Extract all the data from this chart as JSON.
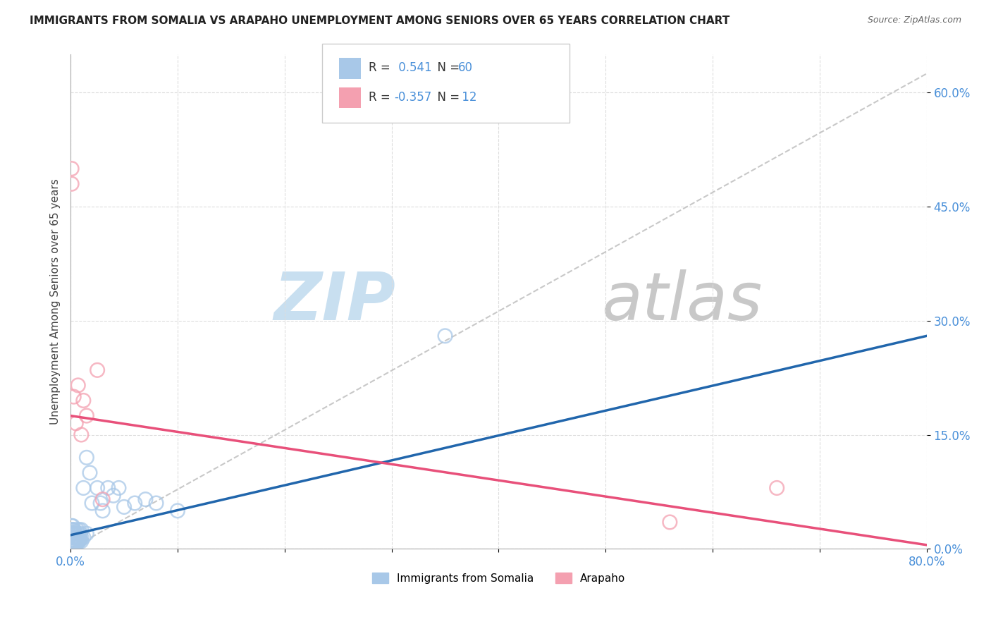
{
  "title": "IMMIGRANTS FROM SOMALIA VS ARAPAHO UNEMPLOYMENT AMONG SENIORS OVER 65 YEARS CORRELATION CHART",
  "source": "Source: ZipAtlas.com",
  "ylabel": "Unemployment Among Seniors over 65 years",
  "R1": 0.541,
  "N1": 60,
  "R2": -0.357,
  "N2": 12,
  "blue_color": "#a8c8e8",
  "pink_color": "#f4a0b0",
  "blue_line_color": "#2166ac",
  "pink_line_color": "#e8507a",
  "watermark_zip_color": "#c8dff0",
  "watermark_atlas_color": "#c8c8c8",
  "background_color": "#ffffff",
  "xlim": [
    0,
    0.8
  ],
  "ylim": [
    0,
    0.65
  ],
  "ytick_values": [
    0,
    0.15,
    0.3,
    0.45,
    0.6
  ],
  "ytick_labels": [
    "0.0%",
    "15.0%",
    "30.0%",
    "45.0%",
    "60.0%"
  ],
  "legend1_label": "Immigrants from Somalia",
  "legend2_label": "Arapaho",
  "somalia_points_x": [
    0.001,
    0.001,
    0.001,
    0.001,
    0.001,
    0.001,
    0.001,
    0.001,
    0.001,
    0.001,
    0.002,
    0.002,
    0.002,
    0.002,
    0.002,
    0.002,
    0.002,
    0.003,
    0.003,
    0.003,
    0.003,
    0.003,
    0.004,
    0.004,
    0.004,
    0.004,
    0.005,
    0.005,
    0.005,
    0.006,
    0.006,
    0.006,
    0.007,
    0.007,
    0.008,
    0.008,
    0.008,
    0.009,
    0.009,
    0.01,
    0.01,
    0.01,
    0.012,
    0.012,
    0.015,
    0.015,
    0.018,
    0.02,
    0.025,
    0.028,
    0.03,
    0.035,
    0.04,
    0.045,
    0.05,
    0.06,
    0.07,
    0.08,
    0.1,
    0.35
  ],
  "somalia_points_y": [
    0.005,
    0.008,
    0.01,
    0.012,
    0.015,
    0.018,
    0.02,
    0.022,
    0.025,
    0.03,
    0.005,
    0.008,
    0.01,
    0.015,
    0.02,
    0.025,
    0.03,
    0.005,
    0.01,
    0.015,
    0.02,
    0.025,
    0.005,
    0.01,
    0.015,
    0.02,
    0.005,
    0.01,
    0.02,
    0.008,
    0.015,
    0.025,
    0.01,
    0.02,
    0.01,
    0.015,
    0.025,
    0.012,
    0.02,
    0.01,
    0.015,
    0.025,
    0.015,
    0.08,
    0.02,
    0.12,
    0.1,
    0.06,
    0.08,
    0.06,
    0.05,
    0.08,
    0.07,
    0.08,
    0.055,
    0.06,
    0.065,
    0.06,
    0.05,
    0.28
  ],
  "arapaho_points_x": [
    0.001,
    0.001,
    0.003,
    0.005,
    0.007,
    0.01,
    0.012,
    0.015,
    0.025,
    0.03,
    0.56,
    0.66
  ],
  "arapaho_points_y": [
    0.5,
    0.48,
    0.2,
    0.165,
    0.215,
    0.15,
    0.195,
    0.175,
    0.235,
    0.065,
    0.035,
    0.08
  ],
  "blue_trend_x": [
    0.0,
    0.8
  ],
  "blue_trend_y": [
    0.018,
    0.28
  ],
  "pink_trend_x": [
    0.0,
    0.8
  ],
  "pink_trend_y": [
    0.175,
    0.005
  ],
  "ref_line_x": [
    0.0,
    0.8
  ],
  "ref_line_y": [
    0.0,
    0.625
  ]
}
